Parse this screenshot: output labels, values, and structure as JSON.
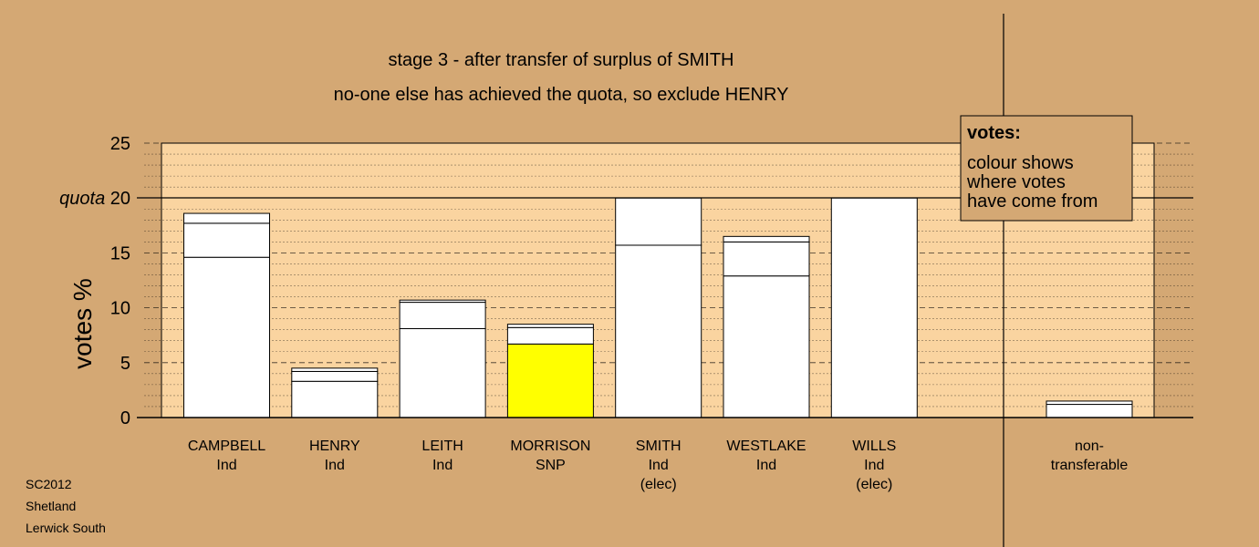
{
  "title_line1": "stage 3 - after transfer of surplus of SMITH",
  "title_line2": "no-one else has achieved the quota, so exclude HENRY",
  "footer": [
    "SC2012",
    "Shetland",
    "Lerwick South"
  ],
  "legend": {
    "heading": "votes:",
    "lines": [
      "colour shows",
      "where votes",
      "have come from"
    ]
  },
  "chart_data": {
    "type": "bar",
    "stacked": true,
    "ylabel": "votes %",
    "ylim": [
      0,
      25
    ],
    "yticks": [
      "0",
      "5",
      "10",
      "15",
      "quota 20",
      "25"
    ],
    "quota": 20,
    "grid": true,
    "colors": {
      "background": "#d4a874",
      "plot_area": "#fad4a0",
      "own_votes": "#ffffff",
      "snp": "#ffff00"
    },
    "categories": [
      {
        "name": "CAMPBELL",
        "party": "Ind",
        "note": "",
        "segments": [
          14.6,
          3.1,
          0.9
        ],
        "colors": [
          "#ffffff",
          "#ffffff",
          "#ffffff"
        ]
      },
      {
        "name": "HENRY",
        "party": "Ind",
        "note": "",
        "segments": [
          3.3,
          0.9,
          0.3
        ],
        "colors": [
          "#ffffff",
          "#ffffff",
          "#ffffff"
        ]
      },
      {
        "name": "LEITH",
        "party": "Ind",
        "note": "",
        "segments": [
          8.1,
          2.4,
          0.2
        ],
        "colors": [
          "#ffffff",
          "#ffffff",
          "#ffffff"
        ]
      },
      {
        "name": "MORRISON",
        "party": "SNP",
        "note": "",
        "segments": [
          6.7,
          1.5,
          0.3
        ],
        "colors": [
          "#ffff00",
          "#ffffff",
          "#ffffff"
        ]
      },
      {
        "name": "SMITH",
        "party": "Ind",
        "note": "(elec)",
        "segments": [
          15.7,
          4.3
        ],
        "colors": [
          "#ffffff",
          "#ffffff"
        ]
      },
      {
        "name": "WESTLAKE",
        "party": "Ind",
        "note": "",
        "segments": [
          12.9,
          3.1,
          0.5
        ],
        "colors": [
          "#ffffff",
          "#ffffff",
          "#ffffff"
        ]
      },
      {
        "name": "WILLS",
        "party": "Ind",
        "note": "(elec)",
        "segments": [
          20.0
        ],
        "colors": [
          "#ffffff"
        ]
      },
      {
        "name": "non-",
        "party": "transferable",
        "note": "",
        "segments": [
          1.2,
          0.3
        ],
        "colors": [
          "#ffffff",
          "#ffffff"
        ]
      }
    ]
  }
}
